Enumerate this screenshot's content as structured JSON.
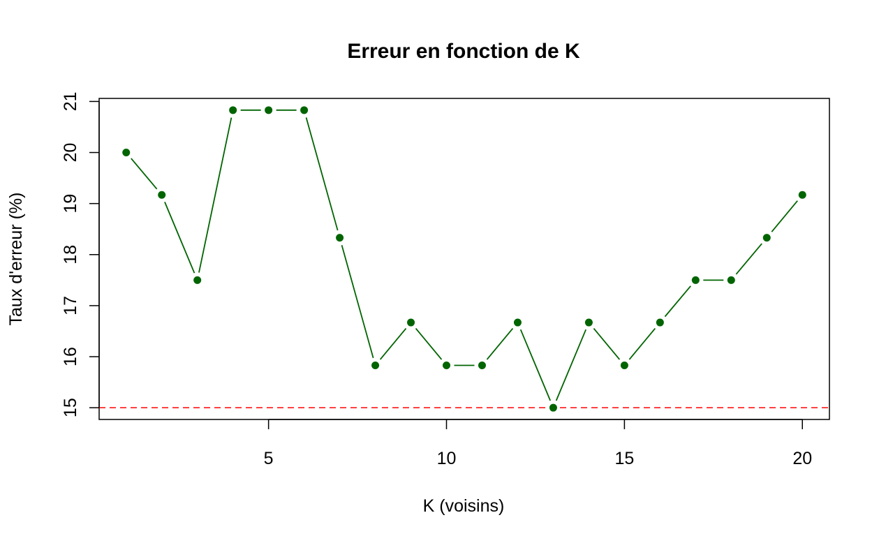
{
  "chart_data": {
    "type": "line",
    "title": "Erreur en fonction de K",
    "xlabel": "K (voisins)",
    "ylabel": "Taux d'erreur (%)",
    "x": [
      1,
      2,
      3,
      4,
      5,
      6,
      7,
      8,
      9,
      10,
      11,
      12,
      13,
      14,
      15,
      16,
      17,
      18,
      19,
      20
    ],
    "series": [
      {
        "values": [
          20.0,
          19.17,
          17.5,
          20.83,
          20.83,
          20.83,
          18.33,
          15.83,
          16.67,
          15.83,
          15.83,
          16.67,
          15.0,
          16.67,
          15.83,
          16.67,
          17.5,
          17.5,
          18.33,
          19.17
        ],
        "color": "#006400"
      }
    ],
    "reference_line": {
      "y": 15,
      "color": "#ff0000",
      "style": "dashed"
    },
    "xlim": [
      0.24,
      20.76
    ],
    "ylim": [
      14.77,
      21.06
    ],
    "xticks": [
      5,
      10,
      15,
      20
    ],
    "yticks": [
      15,
      16,
      17,
      18,
      19,
      20,
      21
    ],
    "grid": false,
    "legend": "none"
  }
}
